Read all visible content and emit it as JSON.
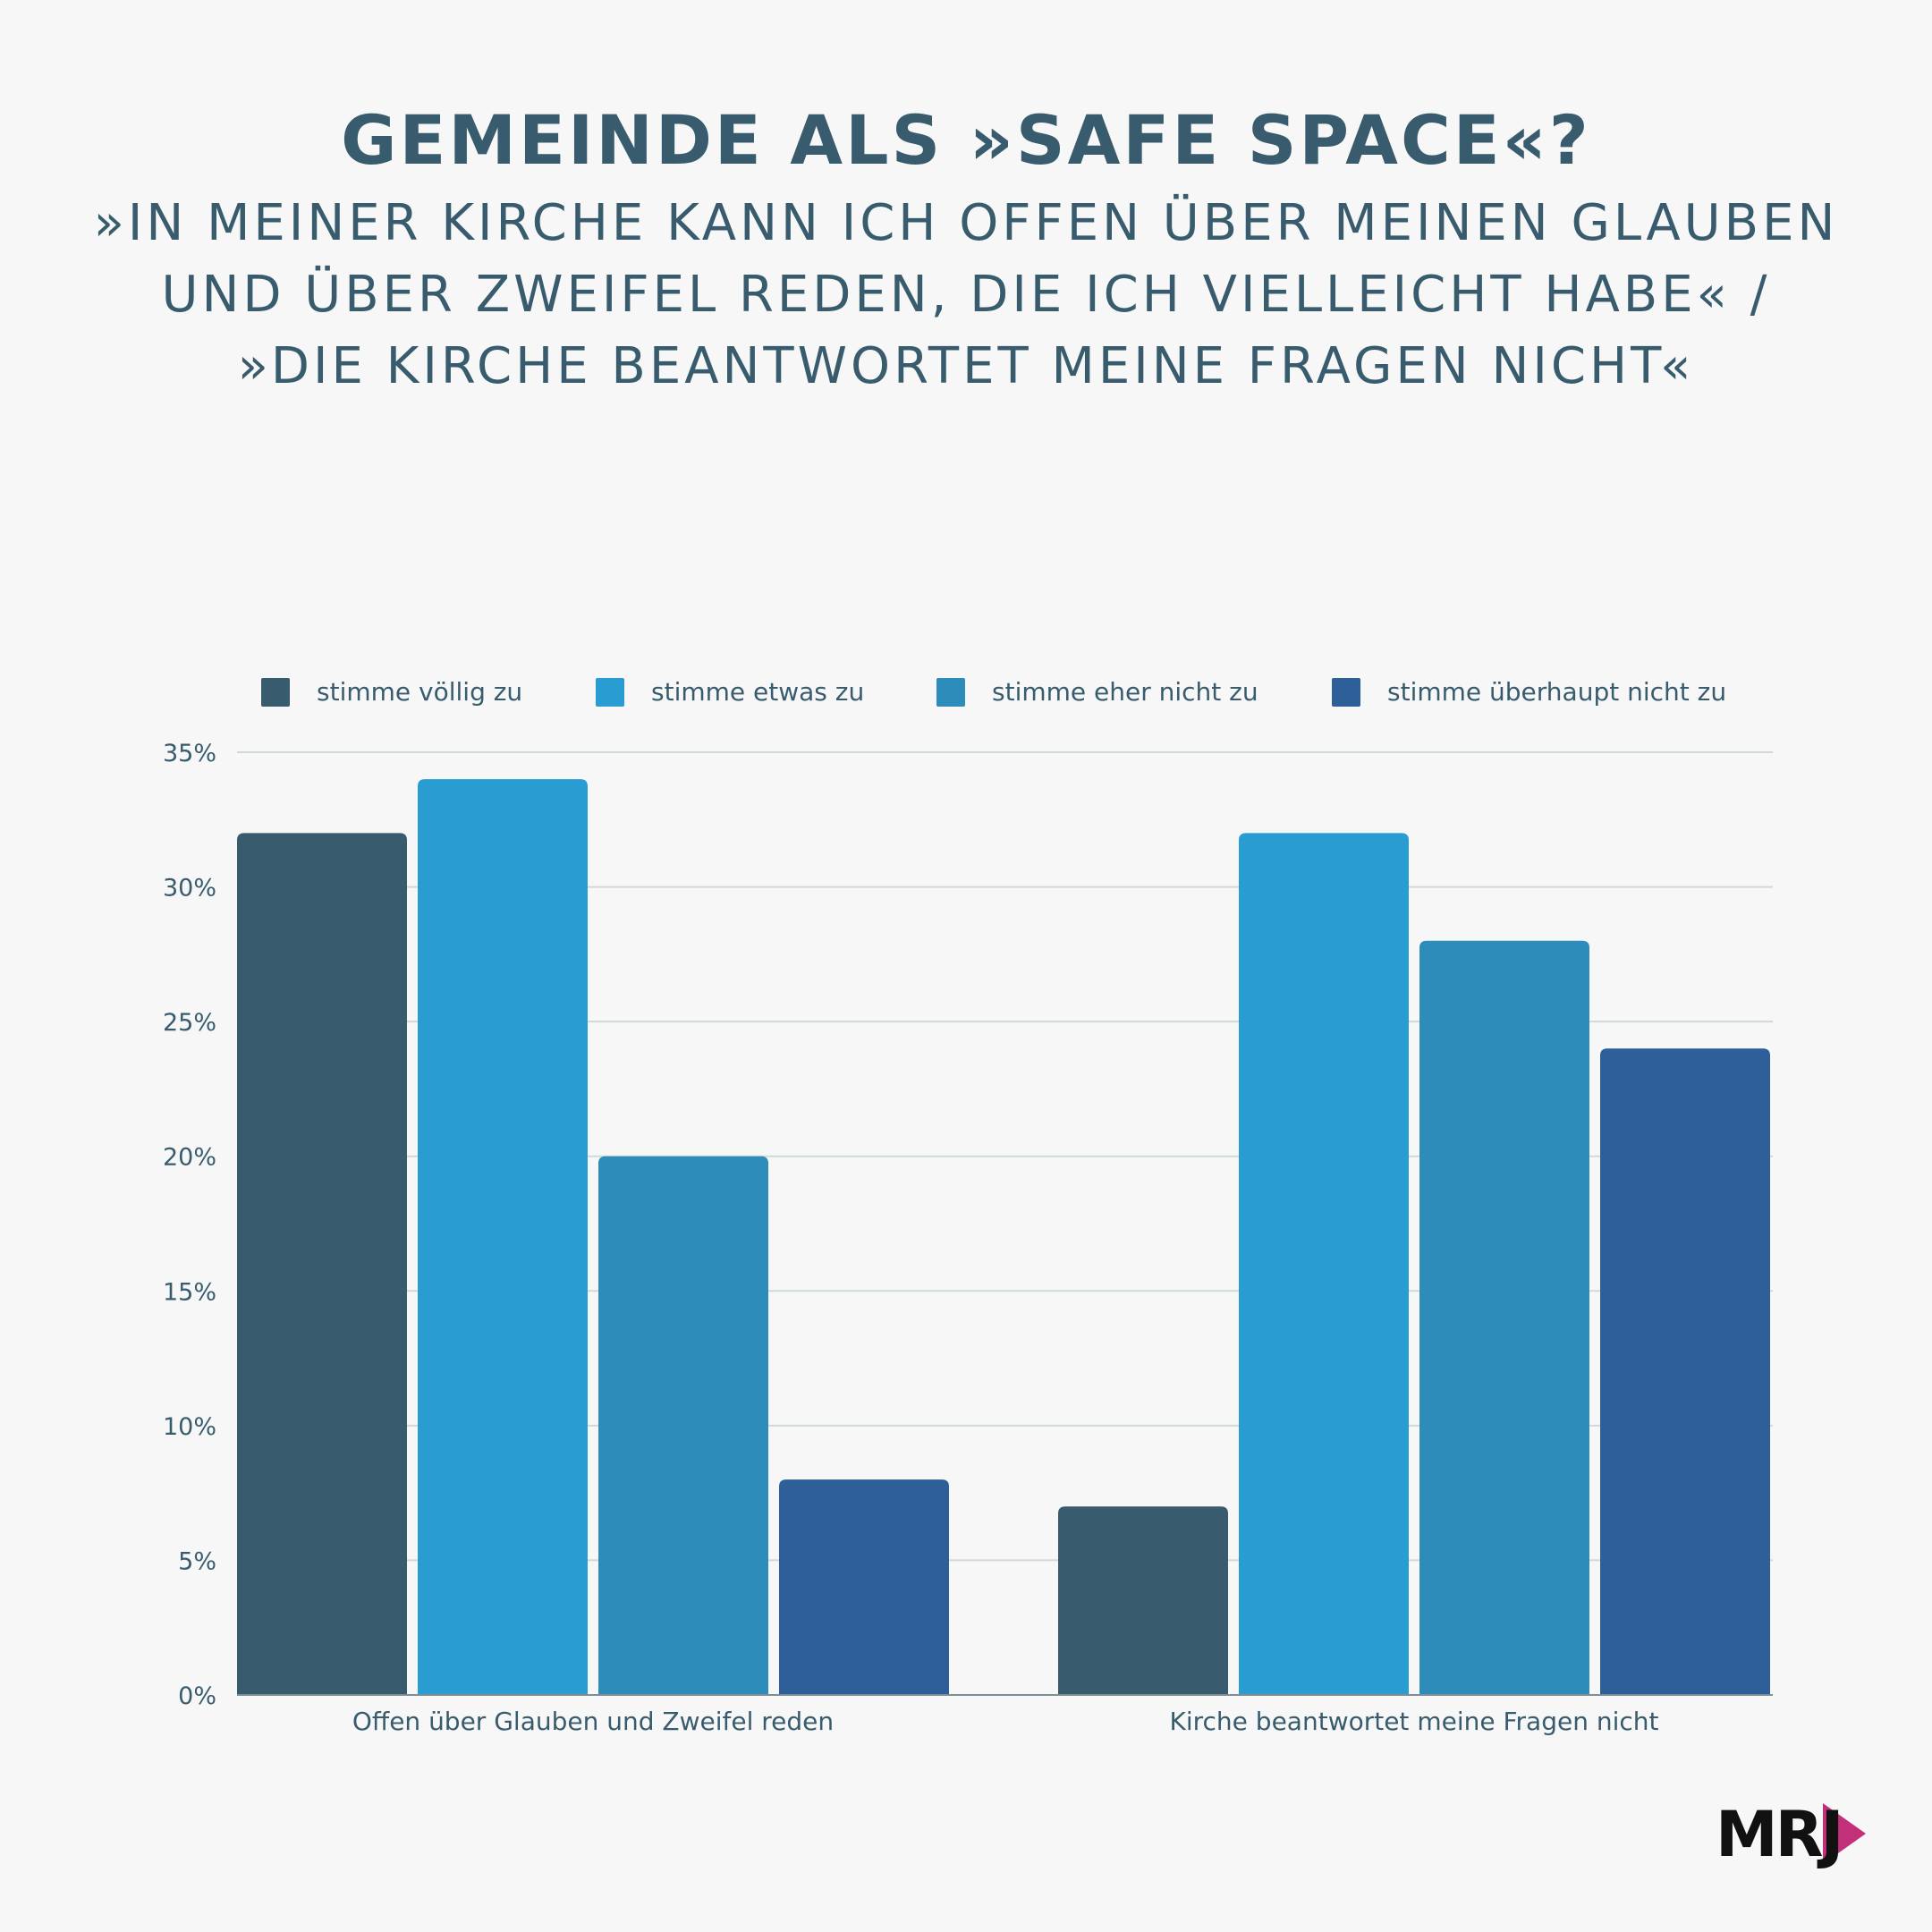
{
  "title": "GEMEINDE ALS »SAFE SPACE«?",
  "subtitle": "»IN MEINER KIRCHE KANN ICH OFFEN ÜBER MEINEN GLAUBEN UND ÜBER ZWEIFEL REDEN, DIE ICH VIELLEICHT HABE« / »DIE KIRCHE BEANTWORTET MEINE FRAGEN NICHT«",
  "logo": {
    "text": "MRJ",
    "color_accent": "#c2307a"
  },
  "chart_data": {
    "type": "bar",
    "categories": [
      "Offen über Glauben und Zweifel reden",
      "Kirche beantwortet meine Fragen nicht"
    ],
    "series": [
      {
        "name": "stimme völlig zu",
        "color": "#385c6d",
        "values": [
          32,
          7
        ]
      },
      {
        "name": "stimme etwas zu",
        "color": "#299dd2",
        "values": [
          34,
          32
        ]
      },
      {
        "name": "stimme eher nicht zu",
        "color": "#2d8cba",
        "values": [
          20,
          28
        ]
      },
      {
        "name": "stimme überhaupt nicht zu",
        "color": "#2e5f98",
        "values": [
          8,
          24
        ]
      }
    ],
    "y_ticks": [
      "0%",
      "5%",
      "10%",
      "15%",
      "20%",
      "25%",
      "30%",
      "35%"
    ],
    "ylim": [
      0,
      35
    ],
    "grid": true,
    "legend_position": "top",
    "xlabel": "",
    "ylabel": ""
  }
}
